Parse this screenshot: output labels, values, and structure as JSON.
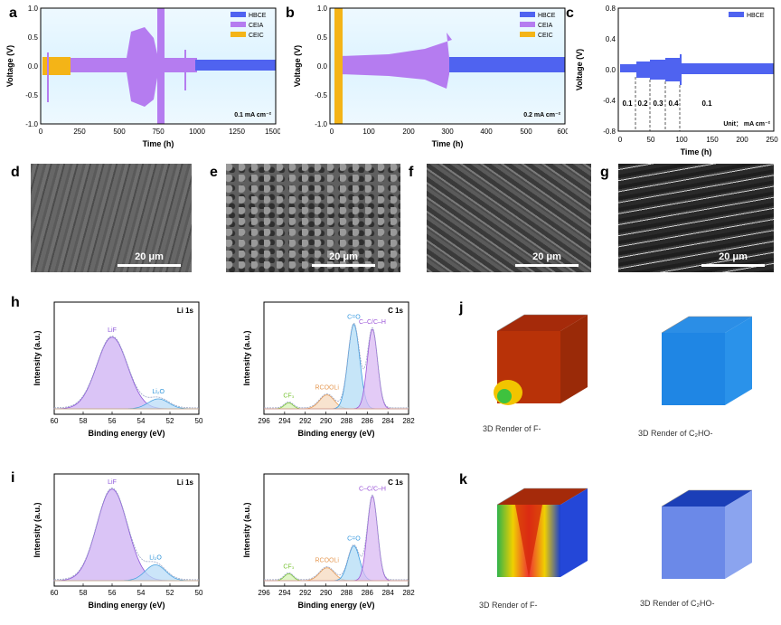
{
  "letters": [
    "a",
    "b",
    "c",
    "d",
    "e",
    "f",
    "g",
    "h",
    "i",
    "j",
    "k"
  ],
  "cycling": {
    "a": {
      "legend": [
        "HBCE",
        "CEIA",
        "CEIC"
      ],
      "note": "0.1 mA cm⁻²",
      "xlabel": "Time (h)",
      "ylabel": "Voltage (V)",
      "xticks": [
        "0",
        "250",
        "500",
        "750",
        "1000",
        "1250",
        "1500"
      ],
      "yticks": [
        "1.0",
        "0.5",
        "0.0",
        "-0.5",
        "-1.0"
      ]
    },
    "b": {
      "legend": [
        "HBCE",
        "CEIA",
        "CEIC"
      ],
      "note": "0.2 mA cm⁻²",
      "xlabel": "Time (h)",
      "ylabel": "Voltage (V)",
      "xticks": [
        "0",
        "100",
        "200",
        "300",
        "400",
        "500",
        "600"
      ],
      "yticks": [
        "1.0",
        "0.5",
        "0.0",
        "-0.5",
        "-1.0"
      ]
    },
    "c": {
      "legend": [
        "HBCE"
      ],
      "xlabel": "Time (h)",
      "ylabel": "Voltage (V)",
      "xticks": [
        "0",
        "50",
        "100",
        "150",
        "200",
        "250"
      ],
      "yticks": [
        "0.8",
        "0.4",
        "0.0",
        "-0.4",
        "-0.8"
      ],
      "rates": [
        "0.1",
        "0.2",
        "0.3",
        "0.4",
        "0.1"
      ],
      "unit": "Unit： mA cm⁻²"
    }
  },
  "colors": {
    "HBCE": "#4f63f0",
    "CEIA": "#b57cf0",
    "CEIC": "#f4b417"
  },
  "sem": {
    "d": "20 μm",
    "e": "20 μm",
    "f": "20 μm",
    "g": "20 μm"
  },
  "xps": {
    "xlabel": "Binding energy (eV)",
    "ylabel": "Intensity (a.u.)",
    "li_title": "Li 1s",
    "c_title": "C 1s",
    "li_ticks": [
      "60",
      "58",
      "56",
      "54",
      "52",
      "50"
    ],
    "c_ticks": [
      "296",
      "294",
      "292",
      "290",
      "288",
      "286",
      "284",
      "282"
    ],
    "li_peaks": [
      "LiF",
      "Li₂O"
    ],
    "c_peaks": [
      "CF₃",
      "RCOOLi",
      "C=O",
      "C–C/C–H"
    ],
    "h": {
      "li": [
        56.0,
        52.8
      ],
      "li_h": [
        0.72,
        0.1
      ],
      "c_h": [
        0.06,
        0.14,
        0.85,
        0.8
      ]
    },
    "i": {
      "li": [
        56.0,
        53.0
      ],
      "li_h": [
        0.92,
        0.16
      ],
      "c_h": [
        0.07,
        0.13,
        0.35,
        0.85
      ]
    }
  },
  "tof": {
    "j": [
      "3D Render of F-",
      "3D Render of C₂HO-"
    ],
    "k": [
      "3D Render of F-",
      "3D Render of C₂HO-"
    ]
  }
}
